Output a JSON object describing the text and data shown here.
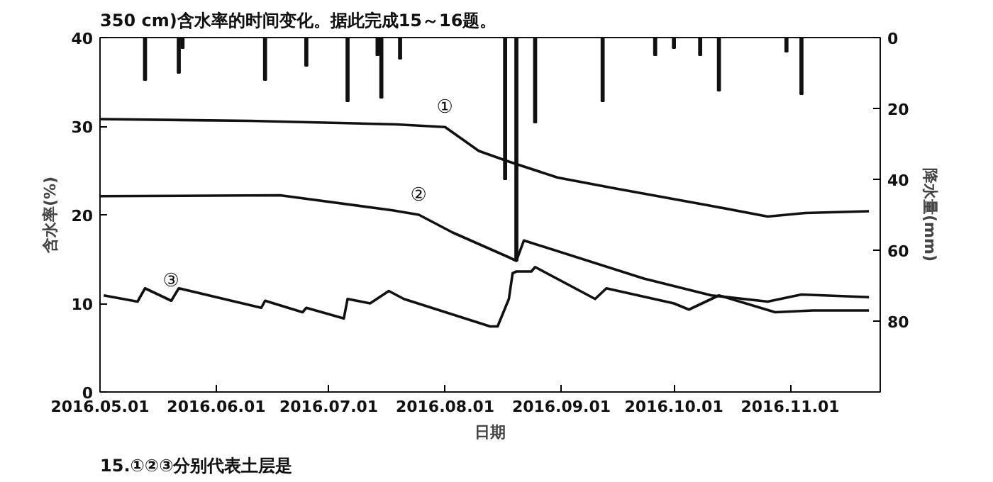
{
  "chart_data": {
    "type": "line",
    "title": "350 cm)含水率的时间变化。据此完成15～16题。",
    "xlabel": "日期",
    "ylabel": "含水率(%)",
    "y2label": "降水量(mm)",
    "annotations": [
      "15.①②③分别代表土层是"
    ],
    "xlim": [
      "2016-05-01",
      "2016-11-25"
    ],
    "xticks": [
      {
        "value": "2016-05-01",
        "label": "2016.05.01"
      },
      {
        "value": "2016-06-01",
        "label": "2016.06.01"
      },
      {
        "value": "2016-07-01",
        "label": "2016.07.01"
      },
      {
        "value": "2016-08-01",
        "label": "2016.08.01"
      },
      {
        "value": "2016-09-01",
        "label": "2016.09.01"
      },
      {
        "value": "2016-10-01",
        "label": "2016.10.01"
      },
      {
        "value": "2016-11-01",
        "label": "2016.11.01"
      }
    ],
    "ylim": [
      0,
      40
    ],
    "yticks": [
      0,
      10,
      20,
      30,
      40
    ],
    "y2lim": [
      100,
      0
    ],
    "y2ticks": [
      20,
      40,
      60,
      80,
      {
        "value": 0,
        "label": "0"
      }
    ],
    "grid": false,
    "marker": "none",
    "line_style": "solid",
    "series": [
      {
        "name": "①",
        "color": "#111111",
        "x": [
          "2016-05-01",
          "2016-06-10",
          "2016-07-19",
          "2016-08-01",
          "2016-08-10",
          "2016-08-18",
          "2016-08-31",
          "2016-09-15",
          "2016-10-11",
          "2016-10-26",
          "2016-11-05",
          "2016-11-22"
        ],
        "values": [
          30.8,
          30.6,
          30.2,
          29.9,
          27.2,
          26.0,
          24.2,
          23.0,
          21.0,
          19.8,
          20.2,
          20.4
        ]
      },
      {
        "name": "②",
        "color": "#111111",
        "x": [
          "2016-05-01",
          "2016-06-18",
          "2016-07-18",
          "2016-07-25",
          "2016-08-03",
          "2016-08-18",
          "2016-08-20",
          "2016-08-22",
          "2016-09-23",
          "2016-10-11",
          "2016-10-26",
          "2016-11-04",
          "2016-11-22"
        ],
        "values": [
          22.1,
          22.2,
          20.5,
          20.0,
          18.0,
          15.2,
          14.8,
          17.1,
          12.8,
          10.9,
          10.2,
          11.0,
          10.7
        ]
      },
      {
        "name": "③",
        "color": "#111111",
        "x": [
          "2016-05-02",
          "2016-05-11",
          "2016-05-13",
          "2016-05-20",
          "2016-05-22",
          "2016-06-06",
          "2016-06-13",
          "2016-06-14",
          "2016-06-24",
          "2016-06-25",
          "2016-07-05",
          "2016-07-06",
          "2016-07-12",
          "2016-07-17",
          "2016-07-21",
          "2016-08-13",
          "2016-08-15",
          "2016-08-18",
          "2016-08-19",
          "2016-08-20",
          "2016-08-24",
          "2016-08-25",
          "2016-09-10",
          "2016-09-13",
          "2016-10-01",
          "2016-10-05",
          "2016-10-13",
          "2016-10-28",
          "2016-11-07",
          "2016-11-22"
        ],
        "values": [
          10.9,
          10.2,
          11.7,
          10.3,
          11.7,
          10.2,
          9.5,
          10.3,
          9.0,
          9.5,
          8.3,
          10.5,
          10.0,
          11.4,
          10.5,
          7.4,
          7.4,
          10.5,
          13.4,
          13.6,
          13.6,
          14.1,
          10.5,
          11.7,
          10.0,
          9.3,
          10.9,
          9.0,
          9.2,
          9.2
        ]
      },
      {
        "type": "bar",
        "axis": "y2",
        "color": "#111111",
        "x": [
          "2016-05-13",
          "2016-05-22",
          "2016-05-23",
          "2016-06-14",
          "2016-06-25",
          "2016-07-06",
          "2016-07-14",
          "2016-07-15",
          "2016-07-20",
          "2016-08-17",
          "2016-08-20",
          "2016-08-25",
          "2016-09-12",
          "2016-09-26",
          "2016-10-01",
          "2016-10-08",
          "2016-10-13",
          "2016-10-31",
          "2016-11-04"
        ],
        "values": [
          12,
          10,
          3,
          12,
          8,
          18,
          5,
          17,
          6,
          40,
          63,
          24,
          18,
          5,
          3,
          5,
          15,
          4,
          16
        ]
      }
    ]
  }
}
